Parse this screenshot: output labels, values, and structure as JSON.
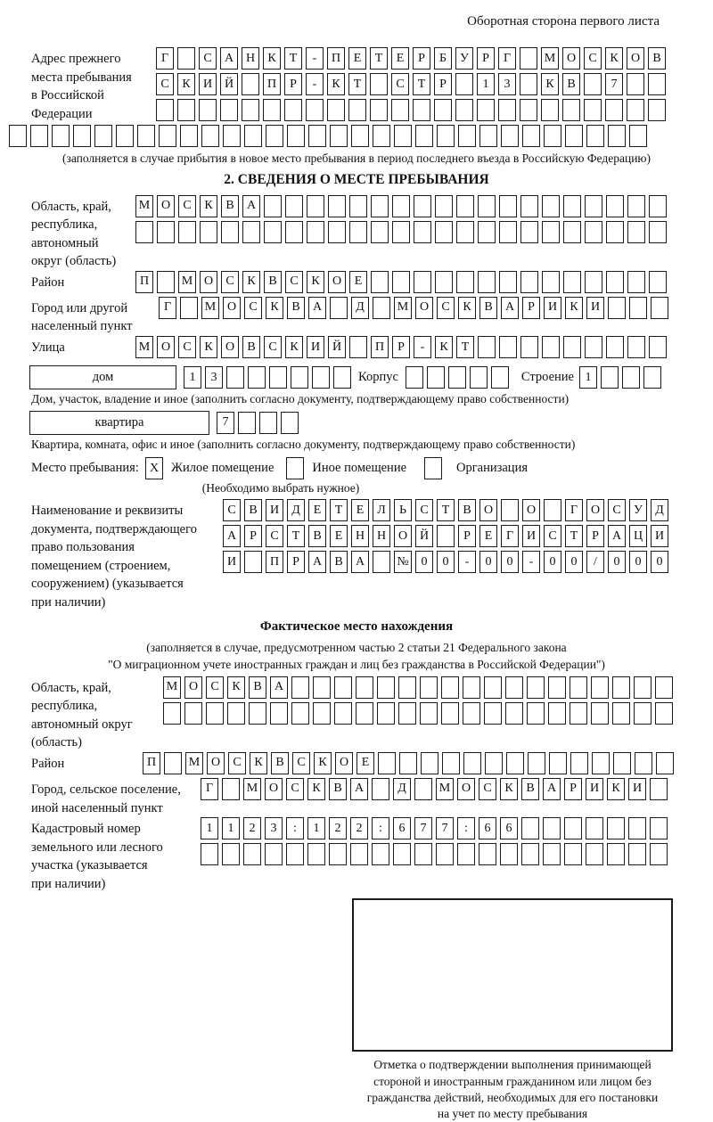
{
  "page": {
    "top_note": "Оборотная сторона первого листа"
  },
  "prev_address": {
    "label": "Адрес прежнего\nместа пребывания\nв Российской\nФедерации",
    "row1": {
      "text": "Г САНКТ-ПЕТЕРБУРГ МОСКОВ",
      "len": 24
    },
    "row2": {
      "text": "СКИЙ ПР-КТ СТР 13 КВ 7",
      "len": 24
    },
    "row3": {
      "text": "",
      "len": 24
    },
    "row4": {
      "text": "",
      "len": 30
    },
    "note": "(заполняется в случае прибытия в новое место пребывания в период последнего въезда в Российскую Федерацию)"
  },
  "section2": {
    "title": "2. СВЕДЕНИЯ О МЕСТЕ ПРЕБЫВАНИЯ",
    "oblast": {
      "label": "Область, край,\nреспублика,\nавтономный\nокруг (область)",
      "row1": {
        "text": "МОСКВА",
        "len": 25
      },
      "row2": {
        "text": "",
        "len": 25
      }
    },
    "raion": {
      "label": "Район",
      "row": {
        "text": "П МОСКВСКОЕ",
        "len": 25
      }
    },
    "gorod": {
      "label": "Город или другой\nнаселенный пункт",
      "row": {
        "text": "Г МОСКВА Д МОСКВАРИКИ",
        "len": 24
      }
    },
    "ulitsa": {
      "label": "Улица",
      "row": {
        "text": "МОСКОВСКИЙ ПР-КТ",
        "len": 25
      }
    },
    "house": {
      "dom_label": "дом",
      "dom": {
        "text": "13",
        "len": 8
      },
      "korpus_label": "Корпус",
      "korpus": {
        "text": "",
        "len": 5
      },
      "stroenie_label": "Строение",
      "stroenie": {
        "text": "1",
        "len": 4
      },
      "note": "Дом, участок, владение и иное (заполнить согласно документу, подтверждающему право собственности)"
    },
    "kvartira": {
      "label": "квартира",
      "row": {
        "text": "7",
        "len": 4
      },
      "note": "Квартира, комната, офис и иное (заполнить согласно документу, подтверждающему право собственности)"
    },
    "stay": {
      "label": "Место пребывания:",
      "options": [
        {
          "label": "Жилое помещение",
          "mark": "X"
        },
        {
          "label": "Иное помещение",
          "mark": ""
        },
        {
          "label": "Организация",
          "mark": ""
        }
      ],
      "note": "(Необходимо выбрать нужное)"
    },
    "document": {
      "label": "Наименование и реквизиты\nдокумента, подтверждающего\nправо пользования\nпомещением (строением,\nсооружением) (указывается\nпри наличии)",
      "row1": {
        "text": "СВИДЕТЕЛЬСТВО О ГОСУД",
        "len": 21
      },
      "row2": {
        "text": "АРСТВЕННОЙ РЕГИСТРАЦИ",
        "len": 21
      },
      "row3": {
        "text": "И ПРАВА №00-00-00/000",
        "len": 21
      }
    }
  },
  "actual_location": {
    "title": "Фактическое место нахождения",
    "note1": "(заполняется в случае, предусмотренном частью 2 статьи 21 Федерального закона",
    "note2": "\"О миграционном учете иностранных граждан и лиц без гражданства в Российской Федерации\")",
    "oblast": {
      "label": "Область, край,\nреспублика,\nавтономный округ\n(область)",
      "row1": {
        "text": "МОСКВА",
        "len": 24
      },
      "row2": {
        "text": "",
        "len": 24
      }
    },
    "raion": {
      "label": "Район",
      "row": {
        "text": "П МОСКВСКОЕ",
        "len": 25
      }
    },
    "gorod": {
      "label": "Город, сельское поселение,\nиной населенный пункт",
      "row": {
        "text": "Г МОСКВА Д МОСКВАРИКИ",
        "len": 22
      }
    },
    "kadastr": {
      "label": "Кадастровый номер\nземельного или лесного\nучастка (указывается\nпри наличии)",
      "row1": {
        "text": "1123:122:677:66",
        "len": 22
      },
      "row2": {
        "text": "",
        "len": 22
      }
    }
  },
  "footer": {
    "stamp_note": "Отметка о подтверждении выполнения принимающей\nстороной и иностранным гражданином или лицом без\nгражданства действий, необходимых для его постановки\nна учет по месту пребывания"
  }
}
